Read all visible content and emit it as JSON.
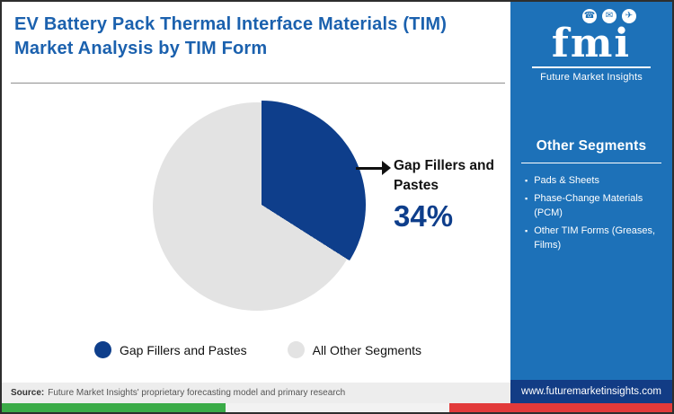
{
  "header": {
    "title": "EV Battery Pack Thermal Interface Materials (TIM) Market Analysis by TIM Form"
  },
  "chart_data": {
    "type": "pie",
    "title": "EV Battery Pack Thermal Interface Materials (TIM) Market Analysis by TIM Form",
    "slices": [
      {
        "label": "Gap Fillers and Pastes",
        "value": 34,
        "color": "#0e3e8b"
      },
      {
        "label": "All Other Segments",
        "value": 66,
        "color": "#e3e3e3"
      }
    ],
    "callout": {
      "label": "Gap Fillers and Pastes",
      "value_text": "34%"
    },
    "start_angle": "top",
    "direction": "clockwise",
    "legend_position": "bottom"
  },
  "sidebar": {
    "logo": {
      "text": "fmi",
      "subtitle": "Future Market Insights",
      "icons": [
        {
          "name": "phone-icon",
          "glyph": "☎"
        },
        {
          "name": "mail-icon",
          "glyph": "✉"
        },
        {
          "name": "plane-icon",
          "glyph": "✈"
        }
      ]
    },
    "other_segments": {
      "title": "Other Segments",
      "items": [
        "Pads & Sheets",
        "Phase-Change Materials (PCM)",
        "Other TIM Forms (Greases, Films)"
      ]
    },
    "url": "www.futuremarketinsights.com"
  },
  "footer": {
    "source_label": "Source:",
    "source_text": "Future Market Insights' proprietary forecasting model and primary research"
  },
  "colors": {
    "navy": "#0e3e8b",
    "pie_gray": "#e3e3e3",
    "title_blue": "#1b61ae",
    "sidebar_blue": "#1d71b8",
    "urlbar_navy": "#123c85",
    "strip_green": "#3aab47",
    "strip_white": "#f2f2f2",
    "strip_red": "#e23a3a",
    "source_bg": "#ededed"
  }
}
